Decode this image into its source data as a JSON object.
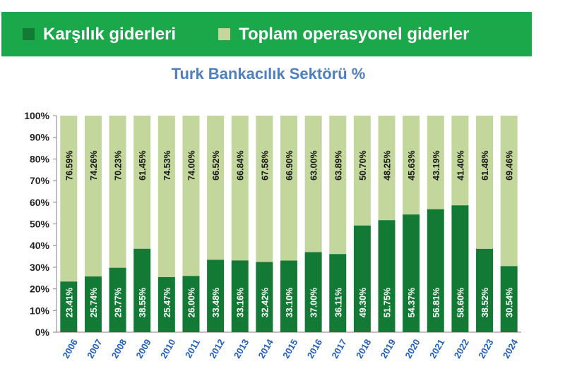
{
  "legend": {
    "items": [
      {
        "label": "Karşılık giderleri",
        "color": "#137a35"
      },
      {
        "label": "Toplam operasyonel giderler",
        "color": "#c3d69b"
      }
    ]
  },
  "chart_data": {
    "type": "bar",
    "stacked": true,
    "title": "Turk Bankacılık Sektörü %",
    "categories": [
      "2006",
      "2007",
      "2008",
      "2009",
      "2010",
      "2011",
      "2012",
      "2013",
      "2014",
      "2015",
      "2016",
      "2017",
      "2018",
      "2019",
      "2020",
      "2021",
      "2022",
      "2023",
      "2024"
    ],
    "series": [
      {
        "name": "Karşılık giderleri",
        "color": "#137a35",
        "values": [
          23.41,
          25.74,
          29.77,
          38.55,
          25.47,
          26.0,
          33.48,
          33.16,
          32.42,
          33.1,
          37.0,
          36.11,
          49.3,
          51.75,
          54.37,
          56.81,
          58.6,
          38.52,
          30.54
        ]
      },
      {
        "name": "Toplam operasyonel giderler",
        "color": "#c3d69b",
        "values": [
          76.59,
          74.26,
          70.23,
          61.45,
          74.53,
          74.0,
          66.52,
          66.84,
          67.58,
          66.9,
          63.0,
          63.89,
          50.7,
          48.25,
          45.63,
          43.19,
          41.4,
          61.48,
          69.46
        ]
      }
    ],
    "ylim": [
      0,
      100
    ],
    "yticks": [
      "0%",
      "10%",
      "20%",
      "30%",
      "40%",
      "50%",
      "60%",
      "70%",
      "80%",
      "90%",
      "100%"
    ],
    "value_suffix": "%",
    "axis_label_color": "#1f5fbf",
    "grid": false
  }
}
